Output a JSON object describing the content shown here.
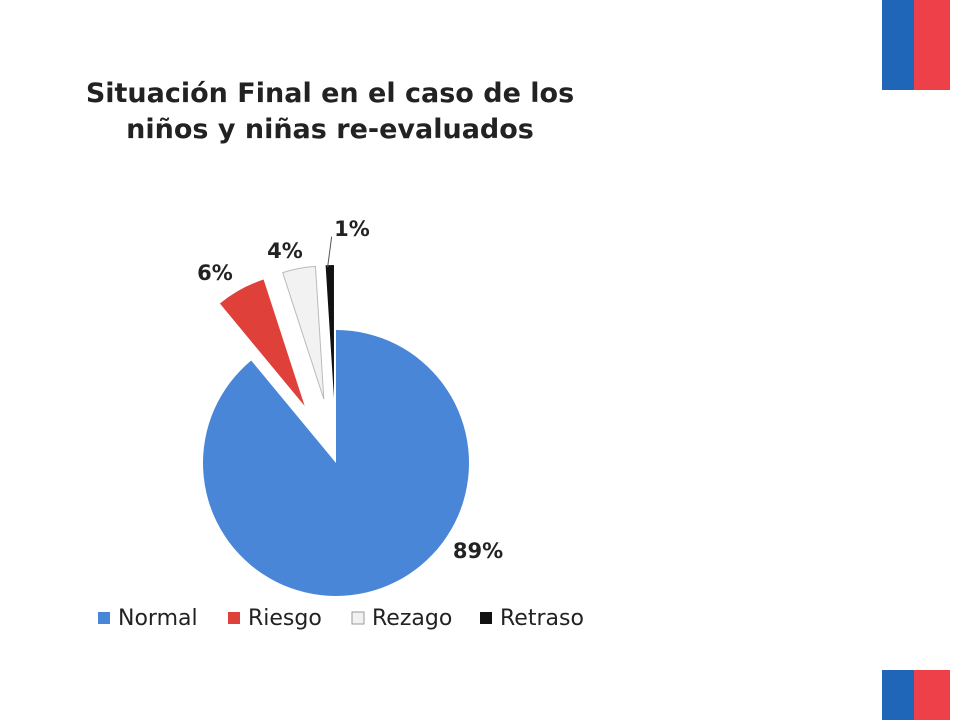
{
  "chart_data": {
    "type": "pie",
    "title": "Situación Final en el caso de los niños y niñas re-evaluados",
    "categories": [
      "Normal",
      "Riesgo",
      "Rezago",
      "Retraso"
    ],
    "values": [
      89,
      6,
      4,
      1
    ],
    "value_labels": [
      "89%",
      "6%",
      "4%",
      "1%"
    ],
    "colors": [
      "#4a86d8",
      "#e0403a",
      "#f2f2f2",
      "#111111"
    ],
    "legend": "bottom"
  }
}
